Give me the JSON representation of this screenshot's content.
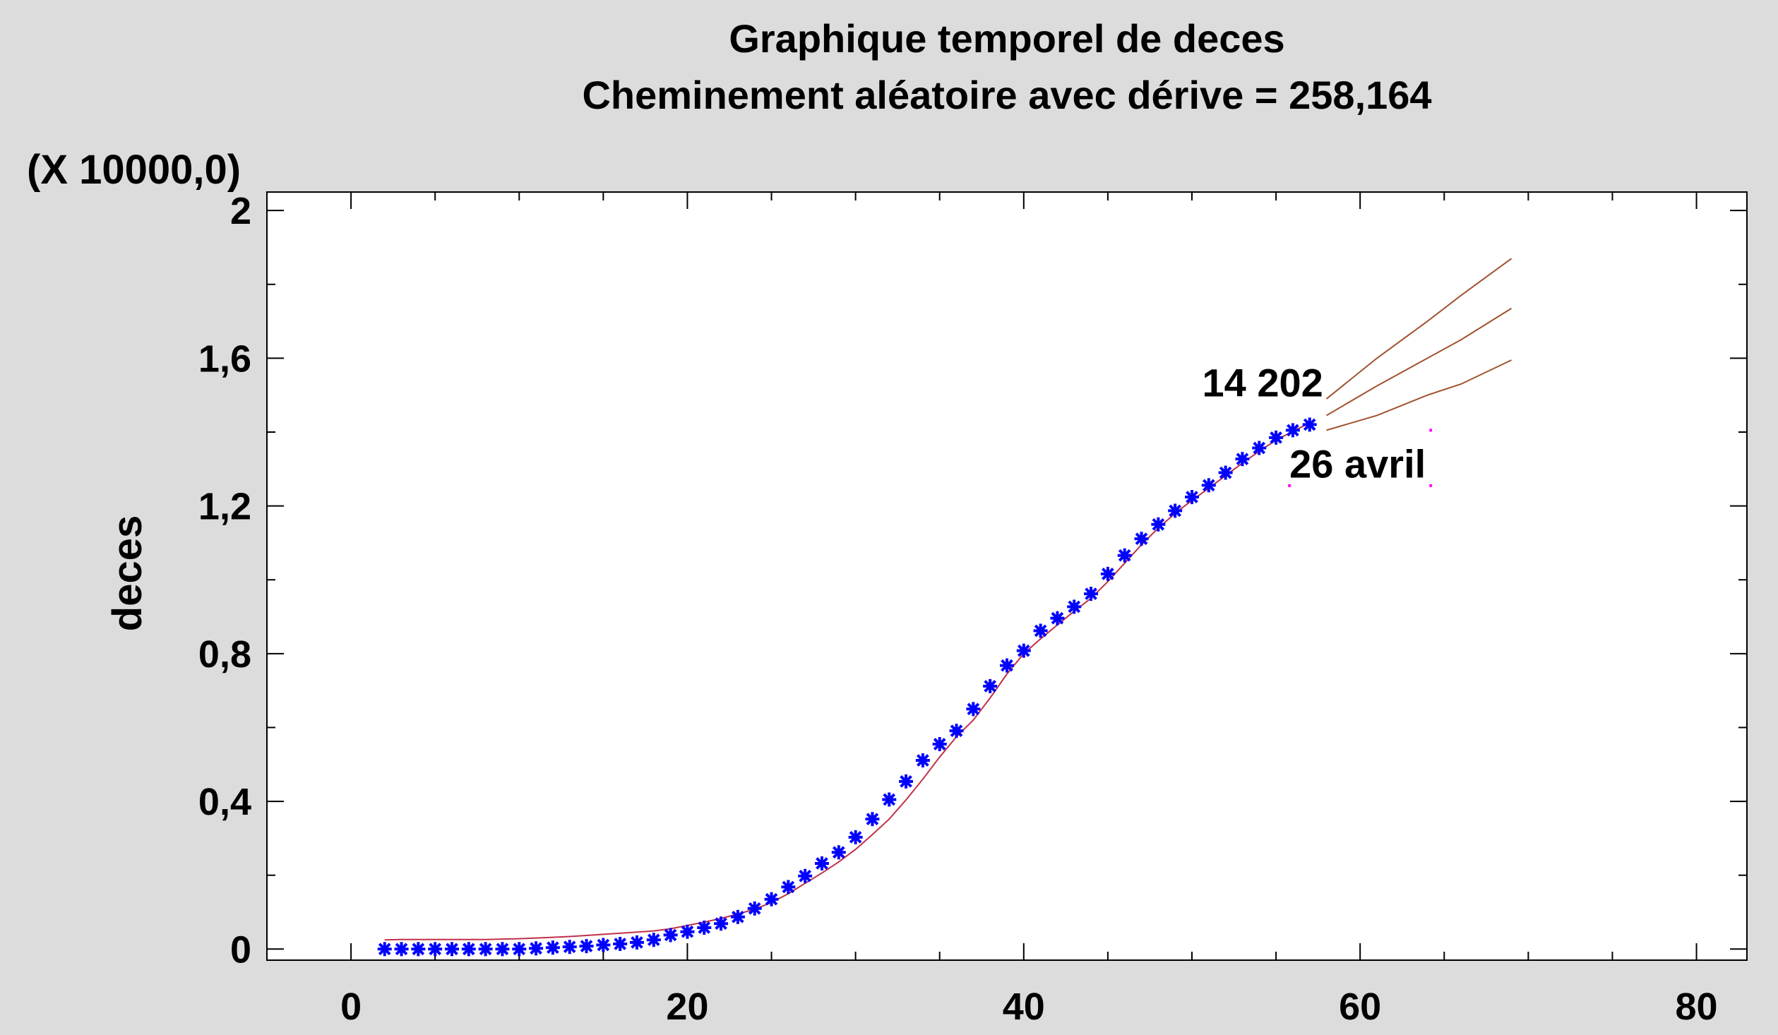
{
  "chart_data": {
    "type": "scatter",
    "title": "Graphique temporel de deces",
    "subtitle": "Cheminement aléatoire avec dérive = 258,164",
    "ylabel": "deces",
    "xlabel": "",
    "y_multiplier_label": "(X 10000,0)",
    "xlim": [
      -5,
      83
    ],
    "ylim": [
      -0.03,
      2.05
    ],
    "x_ticks": [
      0,
      20,
      40,
      60,
      80
    ],
    "y_ticks": [
      0,
      0.4,
      0.8,
      1.2,
      1.6,
      2.0
    ],
    "x_tick_labels": [
      "0",
      "20",
      "40",
      "60",
      "80"
    ],
    "y_tick_labels": [
      "0",
      "0,4",
      "0,8",
      "1,2",
      "1,6",
      "2"
    ],
    "grid": false,
    "colors": {
      "data": "#0000ff",
      "fit": "#c0304a",
      "forecast": "#a0522d",
      "marker": "#ff00ff",
      "plot_bg": "#ffffff",
      "page_bg": "#dcdcdc"
    },
    "series": [
      {
        "marker": "asterisk",
        "x": [
          2,
          3,
          4,
          5,
          6,
          7,
          8,
          9,
          10,
          11,
          12,
          13,
          14,
          15,
          16,
          17,
          18,
          19,
          20,
          21,
          22,
          23,
          24,
          25,
          26,
          27,
          28,
          29,
          30,
          31,
          32,
          33,
          34,
          35,
          36,
          37,
          38,
          39,
          40,
          41,
          42,
          43,
          44,
          45,
          46,
          47,
          48,
          49,
          50,
          51,
          52,
          53,
          54,
          55,
          56,
          57
        ],
        "y": [
          0.0,
          0.0,
          0.0,
          0.0,
          0.0,
          0.0,
          0.0,
          0.0,
          0.0,
          0.002,
          0.004,
          0.006,
          0.008,
          0.011,
          0.014,
          0.018,
          0.025,
          0.038,
          0.047,
          0.058,
          0.069,
          0.087,
          0.11,
          0.135,
          0.168,
          0.198,
          0.232,
          0.262,
          0.303,
          0.352,
          0.405,
          0.454,
          0.511,
          0.555,
          0.591,
          0.65,
          0.712,
          0.768,
          0.808,
          0.862,
          0.896,
          0.927,
          0.962,
          1.016,
          1.066,
          1.111,
          1.15,
          1.187,
          1.224,
          1.256,
          1.29,
          1.327,
          1.357,
          1.385,
          1.405,
          1.4202
        ]
      }
    ],
    "fit_line": {
      "x": [
        2,
        3,
        4,
        5,
        6,
        7,
        8,
        9,
        10,
        11,
        12,
        13,
        14,
        15,
        16,
        17,
        18,
        19,
        20,
        21,
        22,
        23,
        24,
        25,
        26,
        27,
        28,
        29,
        30,
        31,
        32,
        33,
        34,
        35,
        36,
        37,
        38,
        39,
        40,
        41,
        42,
        43,
        44,
        45,
        46,
        47,
        48,
        49,
        50,
        51,
        52,
        53,
        54,
        55,
        56,
        57
      ],
      "y": [
        0.025,
        0.026,
        0.026,
        0.026,
        0.026,
        0.026,
        0.026,
        0.027,
        0.028,
        0.03,
        0.032,
        0.034,
        0.037,
        0.04,
        0.043,
        0.046,
        0.049,
        0.055,
        0.064,
        0.073,
        0.083,
        0.095,
        0.108,
        0.126,
        0.15,
        0.178,
        0.206,
        0.236,
        0.27,
        0.31,
        0.352,
        0.404,
        0.46,
        0.52,
        0.575,
        0.62,
        0.68,
        0.745,
        0.8,
        0.84,
        0.878,
        0.915,
        0.95,
        0.995,
        1.045,
        1.095,
        1.14,
        1.18,
        1.215,
        1.248,
        1.282,
        1.316,
        1.348,
        1.378,
        1.402,
        1.425
      ]
    },
    "forecast": {
      "x": [
        58,
        61,
        64,
        66,
        69
      ],
      "upper": [
        1.49,
        1.6,
        1.7,
        1.77,
        1.87
      ],
      "mid": [
        1.445,
        1.525,
        1.6,
        1.65,
        1.735
      ],
      "lower": [
        1.405,
        1.445,
        1.5,
        1.53,
        1.595
      ]
    },
    "annotations": [
      {
        "text": "14 202",
        "x": 57.8,
        "y": 1.535,
        "anchor": "end"
      },
      {
        "text": "26 avril",
        "x": 55.8,
        "y": 1.315,
        "anchor": "start"
      }
    ],
    "marker_box": {
      "x": [
        55.8,
        64.2
      ],
      "y": [
        1.255,
        1.405
      ]
    }
  }
}
